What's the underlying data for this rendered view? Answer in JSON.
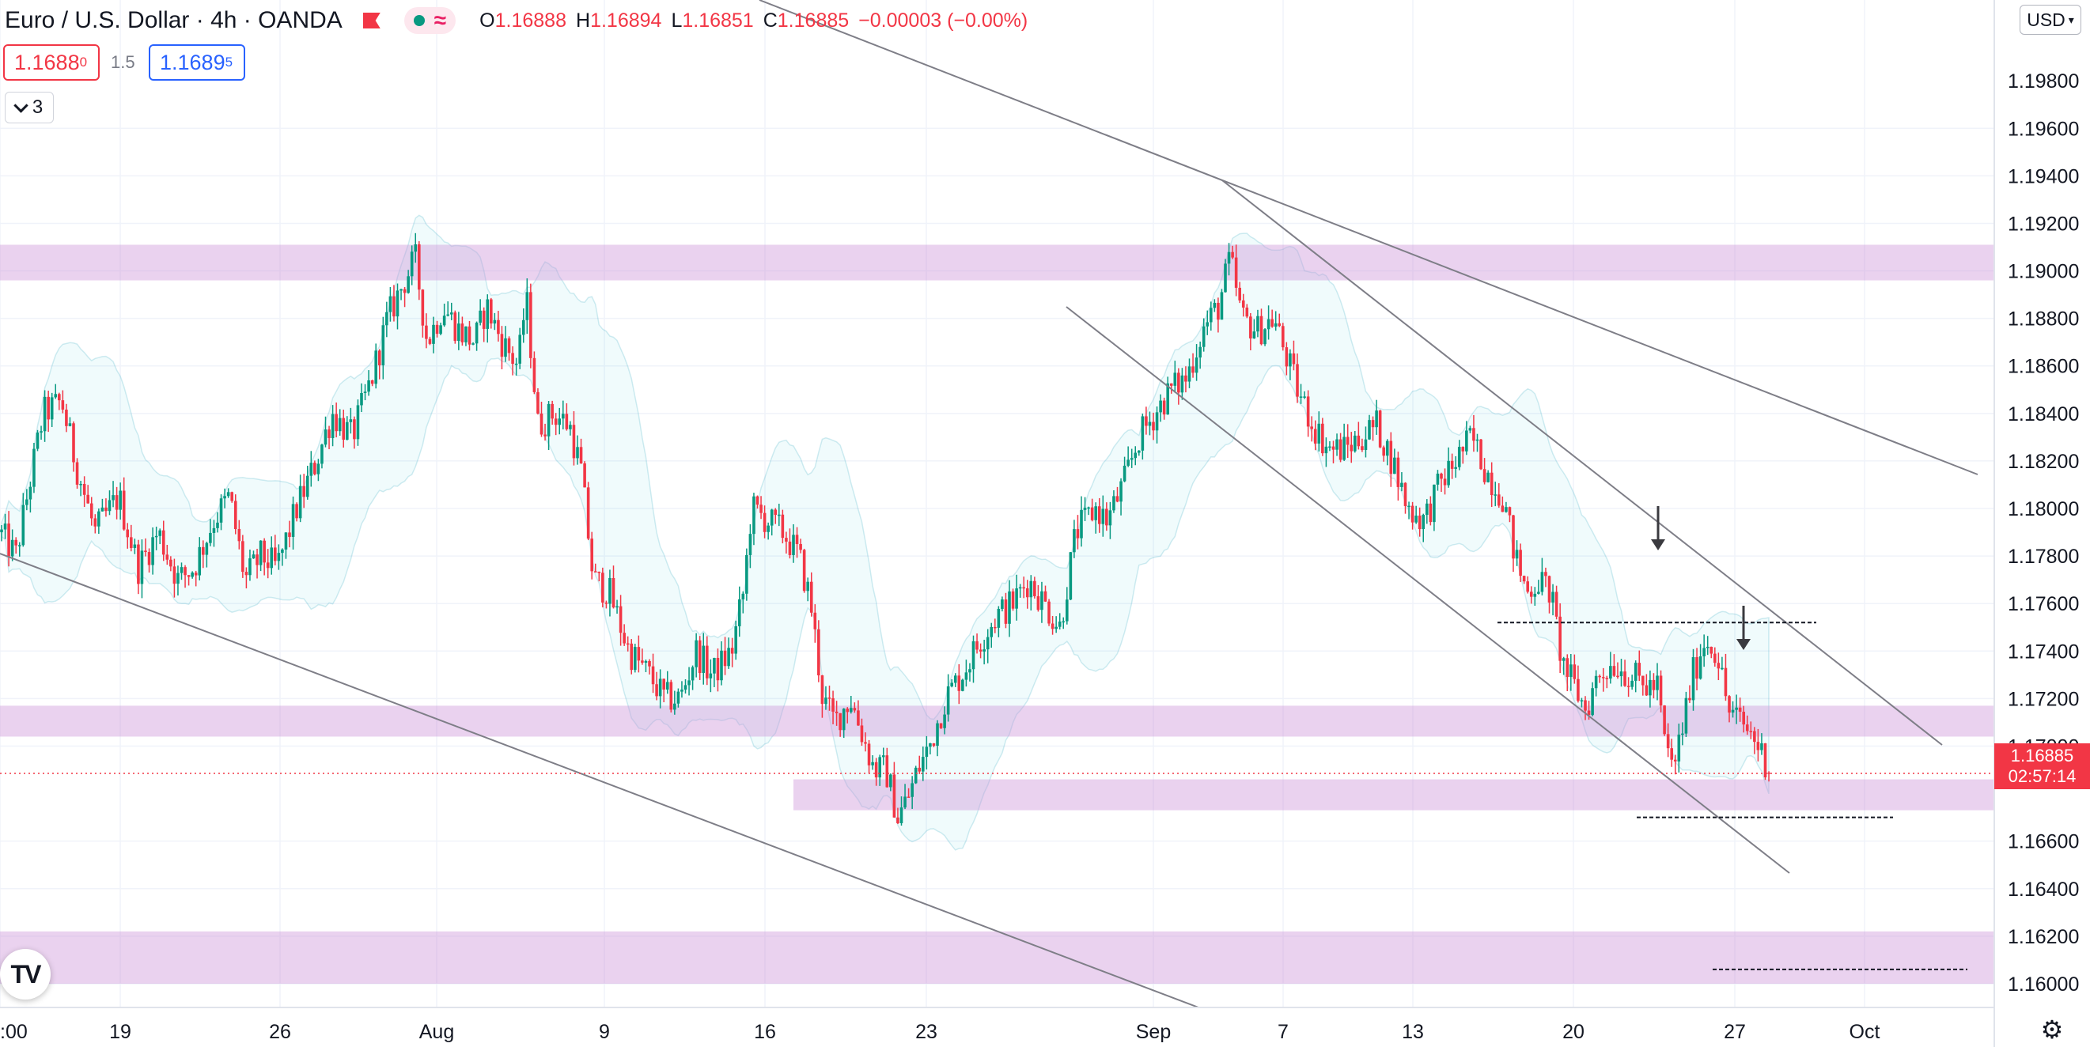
{
  "header": {
    "symbol_title": "Euro / U.S. Dollar · 4h · OANDA",
    "ohlc": {
      "o_label": "O",
      "o": "1.16888",
      "h_label": "H",
      "h": "1.16894",
      "l_label": "L",
      "l": "1.16851",
      "c_label": "C",
      "c": "1.16885",
      "change": "−0.00003 (−0.00%)"
    },
    "indicator_icon": "approx-equal-icon"
  },
  "trade": {
    "sell_main": "1.1688",
    "sell_sup": "0",
    "spread": "1.5",
    "buy_main": "1.1689",
    "buy_sup": "5"
  },
  "indicators_collapsed_count": "3",
  "currency_selector": "USD",
  "last_price": {
    "value": "1.16885",
    "countdown": "02:57:14"
  },
  "colors": {
    "up": "#089981",
    "down": "#f23645",
    "zone": "#e1bee7",
    "band": "#00bcd4",
    "selling_button": "#f23645",
    "buy_button": "#2962ff"
  },
  "logo": "TV",
  "chart_data": {
    "type": "candlestick",
    "timeframe": "4h",
    "ylim": [
      1.159,
      1.2014
    ],
    "y_ticks": [
      "1.19600",
      "1.19400",
      "1.19200",
      "1.19000",
      "1.18800",
      "1.18600",
      "1.18400",
      "1.18200",
      "1.18000",
      "1.17800",
      "1.17600",
      "1.17400",
      "1.17200",
      "1.17000",
      "1.16600",
      "1.16400",
      "1.16200",
      "1.16000"
    ],
    "top_partial_tick": "1.19800",
    "x_ticks": [
      {
        "label": ":00",
        "x": 0
      },
      {
        "label": "19",
        "x": 152
      },
      {
        "label": "26",
        "x": 354
      },
      {
        "label": "Aug",
        "x": 552
      },
      {
        "label": "9",
        "x": 764
      },
      {
        "label": "16",
        "x": 967
      },
      {
        "label": "23",
        "x": 1171
      },
      {
        "label": "Sep",
        "x": 1458
      },
      {
        "label": "7",
        "x": 1622
      },
      {
        "label": "13",
        "x": 1786
      },
      {
        "label": "20",
        "x": 1989
      },
      {
        "label": "27",
        "x": 2193
      },
      {
        "label": "Oct",
        "x": 2357
      }
    ],
    "anchors": [
      [
        0,
        1.179
      ],
      [
        20,
        1.178
      ],
      [
        40,
        1.1815
      ],
      [
        55,
        1.184
      ],
      [
        78,
        1.1845
      ],
      [
        95,
        1.182
      ],
      [
        120,
        1.179
      ],
      [
        150,
        1.1805
      ],
      [
        175,
        1.1775
      ],
      [
        200,
        1.179
      ],
      [
        225,
        1.177
      ],
      [
        245,
        1.1775
      ],
      [
        270,
        1.1795
      ],
      [
        290,
        1.1805
      ],
      [
        310,
        1.177
      ],
      [
        330,
        1.178
      ],
      [
        350,
        1.1775
      ],
      [
        375,
        1.18
      ],
      [
        400,
        1.182
      ],
      [
        420,
        1.184
      ],
      [
        445,
        1.183
      ],
      [
        470,
        1.1855
      ],
      [
        490,
        1.188
      ],
      [
        510,
        1.1895
      ],
      [
        525,
        1.1905
      ],
      [
        540,
        1.187
      ],
      [
        560,
        1.1885
      ],
      [
        580,
        1.1875
      ],
      [
        600,
        1.187
      ],
      [
        615,
        1.1885
      ],
      [
        635,
        1.187
      ],
      [
        655,
        1.186
      ],
      [
        665,
        1.189
      ],
      [
        680,
        1.1835
      ],
      [
        700,
        1.184
      ],
      [
        720,
        1.1835
      ],
      [
        735,
        1.1815
      ],
      [
        750,
        1.177
      ],
      [
        770,
        1.1765
      ],
      [
        795,
        1.174
      ],
      [
        820,
        1.173
      ],
      [
        840,
        1.172
      ],
      [
        860,
        1.172
      ],
      [
        880,
        1.174
      ],
      [
        900,
        1.173
      ],
      [
        925,
        1.174
      ],
      [
        940,
        1.1765
      ],
      [
        950,
        1.18
      ],
      [
        970,
        1.1795
      ],
      [
        990,
        1.179
      ],
      [
        1010,
        1.178
      ],
      [
        1025,
        1.176
      ],
      [
        1040,
        1.172
      ],
      [
        1055,
        1.171
      ],
      [
        1075,
        1.172
      ],
      [
        1090,
        1.1705
      ],
      [
        1105,
        1.169
      ],
      [
        1120,
        1.169
      ],
      [
        1135,
        1.167
      ],
      [
        1150,
        1.168
      ],
      [
        1160,
        1.169
      ],
      [
        1175,
        1.17
      ],
      [
        1195,
        1.172
      ],
      [
        1215,
        1.173
      ],
      [
        1240,
        1.1745
      ],
      [
        1260,
        1.1755
      ],
      [
        1280,
        1.176
      ],
      [
        1300,
        1.177
      ],
      [
        1320,
        1.176
      ],
      [
        1340,
        1.175
      ],
      [
        1360,
        1.179
      ],
      [
        1385,
        1.18
      ],
      [
        1400,
        1.1795
      ],
      [
        1420,
        1.181
      ],
      [
        1440,
        1.183
      ],
      [
        1460,
        1.184
      ],
      [
        1480,
        1.185
      ],
      [
        1500,
        1.1855
      ],
      [
        1520,
        1.1875
      ],
      [
        1540,
        1.1885
      ],
      [
        1555,
        1.1905
      ],
      [
        1570,
        1.188
      ],
      [
        1590,
        1.1875
      ],
      [
        1610,
        1.188
      ],
      [
        1625,
        1.1865
      ],
      [
        1640,
        1.185
      ],
      [
        1660,
        1.1835
      ],
      [
        1680,
        1.1825
      ],
      [
        1700,
        1.1825
      ],
      [
        1720,
        1.183
      ],
      [
        1740,
        1.1835
      ],
      [
        1760,
        1.182
      ],
      [
        1780,
        1.18
      ],
      [
        1800,
        1.1795
      ],
      [
        1820,
        1.181
      ],
      [
        1840,
        1.182
      ],
      [
        1860,
        1.183
      ],
      [
        1880,
        1.1815
      ],
      [
        1900,
        1.1805
      ],
      [
        1915,
        1.178
      ],
      [
        1930,
        1.1765
      ],
      [
        1945,
        1.177
      ],
      [
        1960,
        1.1765
      ],
      [
        1975,
        1.1735
      ],
      [
        1990,
        1.1725
      ],
      [
        2005,
        1.1715
      ],
      [
        2020,
        1.173
      ],
      [
        2040,
        1.1735
      ],
      [
        2060,
        1.173
      ],
      [
        2080,
        1.1725
      ],
      [
        2095,
        1.1725
      ],
      [
        2105,
        1.17
      ],
      [
        2115,
        1.169
      ],
      [
        2125,
        1.1705
      ],
      [
        2140,
        1.173
      ],
      [
        2155,
        1.1745
      ],
      [
        2170,
        1.174
      ],
      [
        2185,
        1.1715
      ],
      [
        2200,
        1.171
      ],
      [
        2215,
        1.1705
      ],
      [
        2230,
        1.1695
      ],
      [
        2238,
        1.16885
      ]
    ],
    "candle_spacing": 4.55,
    "zones": [
      {
        "from": 1.1896,
        "to": 1.1911,
        "x_start": 0
      },
      {
        "from": 1.1704,
        "to": 1.1717,
        "x_start": 0
      },
      {
        "from": 1.1673,
        "to": 1.1686,
        "x_start": 1003
      },
      {
        "from": 1.16,
        "to": 1.1622,
        "x_start": 0
      }
    ],
    "trendlines": [
      {
        "p1": [
          960,
          0
        ],
        "p2": [
          2500,
          600
        ]
      },
      {
        "p1": [
          0,
          700
        ],
        "p2": [
          1515,
          1274
        ]
      },
      {
        "p1": [
          1545,
          228
        ],
        "p2": [
          2455,
          942
        ]
      },
      {
        "p1": [
          1348,
          388
        ],
        "p2": [
          2262,
          1104
        ]
      }
    ],
    "dashed_levels": [
      {
        "price": 1.1752,
        "x1": 1893,
        "x2": 2296
      },
      {
        "price": 1.167,
        "x1": 2069,
        "x2": 2393
      },
      {
        "price": 1.1606,
        "x1": 2165,
        "x2": 2487
      }
    ],
    "arrows": [
      [
        2096,
        640,
        2096,
        696
      ],
      [
        2204,
        766,
        2204,
        822
      ]
    ]
  }
}
